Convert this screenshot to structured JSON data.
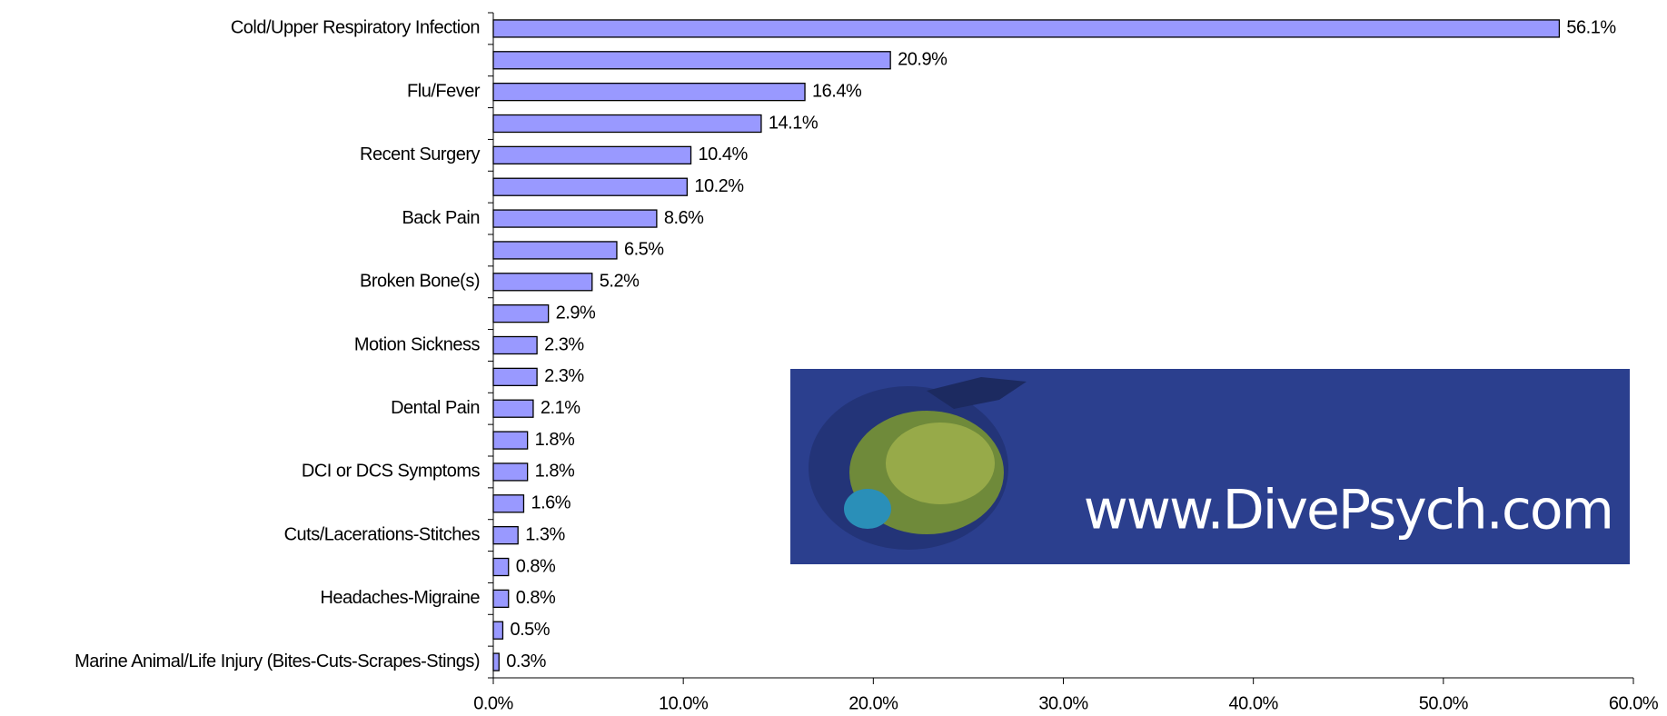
{
  "chart_data": {
    "type": "bar",
    "orientation": "horizontal",
    "categories": [
      "Cold/Upper Respiratory Infection",
      null,
      "Flu/Fever",
      null,
      "Recent Surgery",
      null,
      "Back Pain",
      null,
      "Broken Bone(s)",
      null,
      "Motion Sickness",
      null,
      "Dental Pain",
      null,
      "DCI or DCS Symptoms",
      null,
      "Cuts/Lacerations-Stitches",
      null,
      "Headaches-Migraine",
      null,
      "Marine Animal/Life Injury (Bites-Cuts-Scrapes-Stings)"
    ],
    "values": [
      56.1,
      20.9,
      16.4,
      14.1,
      10.4,
      10.2,
      8.6,
      6.5,
      5.2,
      2.9,
      2.3,
      2.3,
      2.1,
      1.8,
      1.8,
      1.6,
      1.3,
      0.8,
      0.8,
      0.5,
      0.3
    ],
    "value_labels": [
      "56.1%",
      "20.9%",
      "16.4%",
      "14.1%",
      "10.4%",
      "10.2%",
      "8.6%",
      "6.5%",
      "5.2%",
      "2.9%",
      "2.3%",
      "2.3%",
      "2.1%",
      "1.8%",
      "1.8%",
      "1.6%",
      "1.3%",
      "0.8%",
      "0.8%",
      "0.5%",
      "0.3%"
    ],
    "color": "#9999ff",
    "xlim": [
      0,
      60
    ],
    "xticks": [
      {
        "value": 0,
        "label": "0.0%"
      },
      {
        "value": 10,
        "label": "10.0%"
      },
      {
        "value": 20,
        "label": "20.0%"
      },
      {
        "value": 30,
        "label": "30.0%"
      },
      {
        "value": 40,
        "label": "40.0%"
      },
      {
        "value": 50,
        "label": "50.0%"
      },
      {
        "value": 60,
        "label": "60.0%"
      }
    ],
    "grid": false,
    "annotations": [
      "www.DivePsych.com"
    ]
  }
}
